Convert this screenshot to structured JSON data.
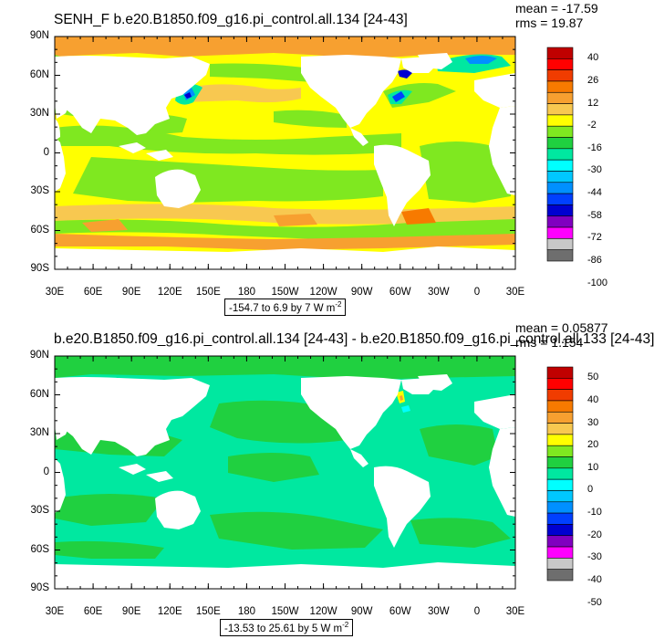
{
  "panels": [
    {
      "title": "SENH_F b.e20.B1850.f09_g16.pi_control.all.134 [24-43]",
      "mean_label": "mean = -17.59",
      "rms_label": "rms = 19.87",
      "info_text": "-154.7 to 6.9 by 7  W m",
      "info_sup": "-2",
      "y_ticks": [
        "90N",
        "60N",
        "30N",
        "0",
        "30S",
        "60S",
        "90S"
      ],
      "x_ticks": [
        "30E",
        "60E",
        "90E",
        "120E",
        "150E",
        "180",
        "150W",
        "120W",
        "90W",
        "60W",
        "30W",
        "0",
        "30E"
      ],
      "colorbar": {
        "labels": [
          "40",
          "26",
          "12",
          "-2",
          "-16",
          "-30",
          "-44",
          "-58",
          "-72",
          "-86",
          "-100"
        ],
        "colors": [
          "#c00000",
          "#ff0000",
          "#f03c00",
          "#f77a00",
          "#f7a030",
          "#f8c850",
          "#ffff00",
          "#7fe820",
          "#20d040",
          "#00e8a0",
          "#00ffff",
          "#00c8ff",
          "#0090ff",
          "#0040ff",
          "#0000d0",
          "#8000c0",
          "#ff00ff",
          "#c8c8c8",
          "#6e6e6e"
        ]
      }
    },
    {
      "title": "b.e20.B1850.f09_g16.pi_control.all.134 [24-43] - b.e20.B1850.f09_g16.pi_control.all.133 [24-43]",
      "mean_label": "mean = 0.05877",
      "rms_label": "rms = 1.154",
      "info_text": "-13.53 to 25.61 by 5  W m",
      "info_sup": "-2",
      "y_ticks": [
        "90N",
        "60N",
        "30N",
        "0",
        "30S",
        "60S",
        "90S"
      ],
      "x_ticks": [
        "30E",
        "60E",
        "90E",
        "120E",
        "150E",
        "180",
        "150W",
        "120W",
        "90W",
        "60W",
        "30W",
        "0",
        "30E"
      ],
      "colorbar": {
        "labels": [
          "50",
          "40",
          "30",
          "20",
          "10",
          "0",
          "-10",
          "-20",
          "-30",
          "-40",
          "-50"
        ],
        "colors": [
          "#c00000",
          "#ff0000",
          "#f03c00",
          "#f77a00",
          "#f7a030",
          "#f8c850",
          "#ffff00",
          "#7fe820",
          "#20d040",
          "#00e8a0",
          "#00ffff",
          "#00c8ff",
          "#0090ff",
          "#0040ff",
          "#0000d0",
          "#8000c0",
          "#ff00ff",
          "#c8c8c8",
          "#6e6e6e"
        ]
      }
    }
  ],
  "chart_data": [
    {
      "type": "heatmap",
      "title": "SENH_F b.e20.B1850.f09_g16.pi_control.all.134 [24-43]",
      "units": "W m-2",
      "xlim": [
        "30E",
        "30E"
      ],
      "ylim": [
        "90S",
        "90N"
      ],
      "x_tick_labels": [
        "30E",
        "60E",
        "90E",
        "120E",
        "150E",
        "180",
        "150W",
        "120W",
        "90W",
        "60W",
        "30W",
        "0",
        "30E"
      ],
      "y_tick_labels": [
        "90N",
        "60N",
        "30N",
        "0",
        "30S",
        "60S",
        "90S"
      ],
      "contour_range": {
        "min": -154.7,
        "max": 6.9,
        "interval": 7
      },
      "colorbar_labels": [
        40,
        26,
        12,
        -2,
        -16,
        -30,
        -44,
        -58,
        -72,
        -86,
        -100
      ],
      "mean": -17.59,
      "rms": 19.87
    },
    {
      "type": "heatmap",
      "title": "b.e20.B1850.f09_g16.pi_control.all.134 [24-43] - b.e20.B1850.f09_g16.pi_control.all.133 [24-43]",
      "units": "W m-2",
      "xlim": [
        "30E",
        "30E"
      ],
      "ylim": [
        "90S",
        "90N"
      ],
      "x_tick_labels": [
        "30E",
        "60E",
        "90E",
        "120E",
        "150E",
        "180",
        "150W",
        "120W",
        "90W",
        "60W",
        "30W",
        "0",
        "30E"
      ],
      "y_tick_labels": [
        "90N",
        "60N",
        "30N",
        "0",
        "30S",
        "60S",
        "90S"
      ],
      "contour_range": {
        "min": -13.53,
        "max": 25.61,
        "interval": 5
      },
      "colorbar_labels": [
        50,
        40,
        30,
        20,
        10,
        0,
        -10,
        -20,
        -30,
        -40,
        -50
      ],
      "mean": 0.05877,
      "rms": 1.154
    }
  ]
}
